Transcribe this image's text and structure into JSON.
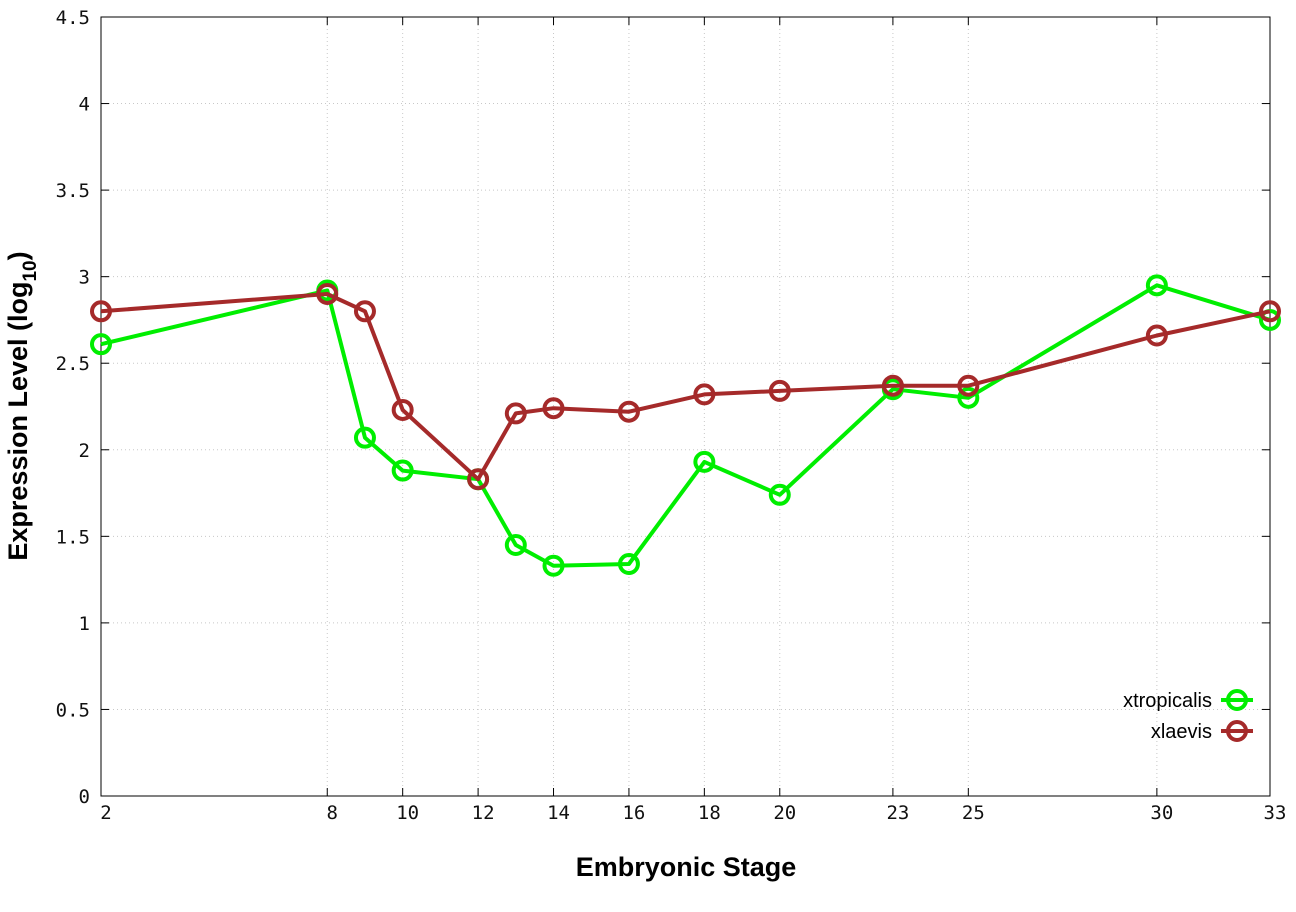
{
  "chart_data": {
    "type": "line",
    "xlabel": "Embryonic Stage",
    "ylabel_main": "Expression Level (log",
    "ylabel_sub": "10",
    "ylabel_close": ")",
    "x": [
      2,
      8,
      9,
      10,
      12,
      13,
      14,
      16,
      18,
      20,
      23,
      25,
      30,
      33
    ],
    "xticks": [
      2,
      8,
      10,
      12,
      14,
      16,
      18,
      20,
      23,
      25,
      30,
      33
    ],
    "xtick_labels": [
      "2",
      "8",
      "10",
      "12",
      "14",
      "16",
      "18",
      "20",
      "23",
      "25",
      "30",
      "33"
    ],
    "xlim": [
      2,
      33
    ],
    "yticks": [
      0,
      0.5,
      1,
      1.5,
      2,
      2.5,
      3,
      3.5,
      4,
      4.5
    ],
    "ytick_labels": [
      "0",
      "0.5",
      "1",
      "1.5",
      "2",
      "2.5",
      "3",
      "3.5",
      "4",
      "4.5"
    ],
    "ylim": [
      0,
      4.5
    ],
    "grid": true,
    "legend_position": "bottom-right",
    "series": [
      {
        "name": "xtropicalis",
        "color": "#00ee00",
        "values": [
          2.61,
          2.92,
          2.07,
          1.88,
          1.83,
          1.45,
          1.33,
          1.34,
          1.93,
          1.74,
          2.35,
          2.3,
          2.95,
          2.75
        ]
      },
      {
        "name": "xlaevis",
        "color": "#a52a2a",
        "values": [
          2.8,
          2.9,
          2.8,
          2.23,
          1.83,
          2.21,
          2.24,
          2.22,
          2.32,
          2.34,
          2.37,
          2.37,
          2.66,
          2.8
        ]
      }
    ]
  }
}
